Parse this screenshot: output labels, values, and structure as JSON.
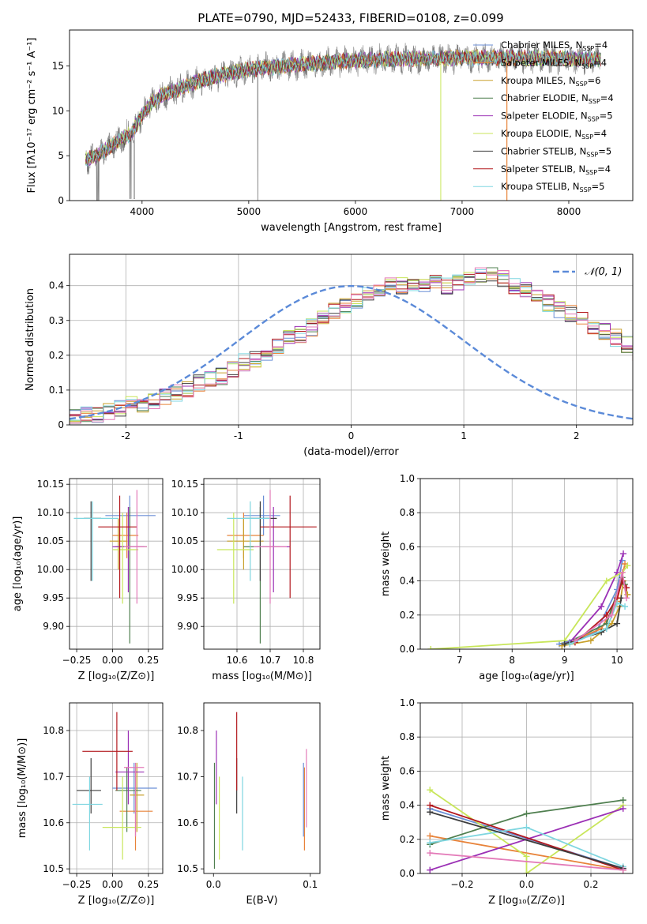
{
  "figure": {
    "title": "PLATE=0790, MJD=52433, FIBERID=0108, z=0.099"
  },
  "colors": {
    "Chabrier MILES": "#6b8fd6",
    "Salpeter MILES": "#e8833a",
    "Kroupa MILES": "#c8a02c",
    "Chabrier ELODIE": "#4f7f4f",
    "Salpeter ELODIE": "#9b30b5",
    "Kroupa ELODIE": "#c8e65a",
    "Chabrier STELIB": "#3d3d3d",
    "Salpeter STELIB": "#b3181e",
    "Kroupa STELIB": "#7fd6e0",
    "pink": "#e37ab8",
    "data": "#808080",
    "normal": "#5b8ad8"
  },
  "chart_data": [
    {
      "id": "spectrum",
      "type": "line",
      "xlabel": "wavelength [Angstrom, rest frame]",
      "ylabel": "Flux [fλ10⁻¹⁷ erg cm⁻² s⁻¹ A⁻¹]",
      "xlim": [
        3320,
        8600
      ],
      "ylim": [
        0,
        19
      ],
      "xticks": [
        4000,
        5000,
        6000,
        7000,
        8000
      ],
      "yticks": [
        0,
        5,
        10,
        15
      ],
      "grid": false,
      "legend": "right",
      "legend_entries": [
        {
          "name": "Chabrier MILES",
          "nssp": "4"
        },
        {
          "name": "Salpeter MILES",
          "nssp": "4"
        },
        {
          "name": "Kroupa MILES",
          "nssp": "6"
        },
        {
          "name": "Chabrier ELODIE",
          "nssp": "4"
        },
        {
          "name": "Salpeter ELODIE",
          "nssp": "5"
        },
        {
          "name": "Kroupa ELODIE",
          "nssp": "4"
        },
        {
          "name": "Chabrier STELIB",
          "nssp": "5"
        },
        {
          "name": "Salpeter STELIB",
          "nssp": "4"
        },
        {
          "name": "Kroupa STELIB",
          "nssp": "5"
        }
      ],
      "continuum": {
        "wavelength": [
          3470,
          3600,
          3700,
          3800,
          3900,
          4000,
          4100,
          4200,
          4300,
          4500,
          4700,
          5000,
          5500,
          6000,
          6500,
          7000,
          7500,
          8000,
          8300
        ],
        "flux": [
          4.5,
          5.2,
          6.0,
          6.8,
          7.5,
          9.5,
          11.0,
          11.8,
          12.2,
          13.2,
          13.9,
          14.6,
          15.2,
          15.6,
          15.8,
          15.9,
          15.9,
          15.8,
          15.7
        ]
      }
    },
    {
      "id": "residuals",
      "type": "histogram",
      "xlabel": "(data-model)/error",
      "ylabel": "Normed distribution",
      "xlim": [
        -2.5,
        2.5
      ],
      "ylim": [
        0,
        0.49
      ],
      "xticks": [
        -2,
        -1,
        0,
        1,
        2
      ],
      "yticks": [
        0.0,
        0.1,
        0.2,
        0.3,
        0.4
      ],
      "grid": true,
      "legend": "top-right",
      "legend_label": "𝒩(0, 1)",
      "bin_width": 0.1,
      "series_mean": [
        0.02,
        0.03,
        0.03,
        0.04,
        0.05,
        0.06,
        0.06,
        0.07,
        0.08,
        0.09,
        0.1,
        0.12,
        0.13,
        0.14,
        0.16,
        0.18,
        0.19,
        0.21,
        0.23,
        0.25,
        0.26,
        0.28,
        0.31,
        0.33,
        0.34,
        0.36,
        0.37,
        0.38,
        0.4,
        0.4,
        0.41,
        0.4,
        0.41,
        0.4,
        0.41,
        0.42,
        0.43,
        0.43,
        0.42,
        0.4,
        0.39,
        0.37,
        0.35,
        0.33,
        0.32,
        0.3,
        0.28,
        0.27,
        0.25,
        0.23,
        0.21,
        0.19,
        0.17,
        0.15,
        0.14,
        0.12,
        0.11,
        0.1,
        0.09,
        0.08,
        0.07,
        0.06,
        0.05,
        0.04,
        0.04,
        0.03,
        0.03,
        0.02
      ],
      "bin_start": -2.5
    },
    {
      "id": "age-vs-Z",
      "type": "scatter",
      "xlabel": "Z [log₁₀(Z/Z⊙)]",
      "ylabel": "age  [log₁₀(age/yr)]",
      "xlim": [
        -0.3,
        0.35
      ],
      "ylim": [
        9.86,
        10.16
      ],
      "xticks": [
        -0.25,
        0.0,
        0.25
      ],
      "xticklabels": [
        "−0.25",
        "0.00",
        "0.25"
      ],
      "yticks": [
        9.9,
        9.95,
        10.0,
        10.05,
        10.1,
        10.15
      ],
      "yticklabels": [
        "9.90",
        "9.95",
        "10.00",
        "10.05",
        "10.10",
        "10.15"
      ],
      "grid": true,
      "points": [
        {
          "s": "Chabrier MILES",
          "x": 0.12,
          "y": 10.095,
          "xlo": -0.05,
          "xhi": 0.3,
          "ylo": 10.06,
          "yhi": 10.13
        },
        {
          "s": "Salpeter MILES",
          "x": 0.1,
          "y": 10.06,
          "xlo": 0.0,
          "xhi": 0.18,
          "ylo": 10.02,
          "yhi": 10.1
        },
        {
          "s": "Kroupa MILES",
          "x": 0.04,
          "y": 10.05,
          "xlo": -0.02,
          "xhi": 0.1,
          "ylo": 10.0,
          "yhi": 10.09
        },
        {
          "s": "Chabrier ELODIE",
          "x": 0.12,
          "y": 10.04,
          "xlo": 0.02,
          "xhi": 0.24,
          "ylo": 9.87,
          "yhi": 10.11
        },
        {
          "s": "Salpeter ELODIE",
          "x": 0.11,
          "y": 10.04,
          "xlo": 0.0,
          "xhi": 0.22,
          "ylo": 9.96,
          "yhi": 10.11
        },
        {
          "s": "Kroupa ELODIE",
          "x": 0.07,
          "y": 10.035,
          "xlo": 0.0,
          "xhi": 0.18,
          "ylo": 9.94,
          "yhi": 10.1
        },
        {
          "s": "Chabrier STELIB",
          "x": -0.15,
          "y": 10.09,
          "xlo": -0.2,
          "xhi": -0.08,
          "ylo": 9.98,
          "yhi": 10.12
        },
        {
          "s": "Salpeter STELIB",
          "x": 0.05,
          "y": 10.075,
          "xlo": -0.1,
          "xhi": 0.17,
          "ylo": 9.95,
          "yhi": 10.13
        },
        {
          "s": "Kroupa STELIB",
          "x": -0.14,
          "y": 10.09,
          "xlo": -0.27,
          "xhi": 0.04,
          "ylo": 9.98,
          "yhi": 10.12
        },
        {
          "s": "pink",
          "x": 0.17,
          "y": 10.04,
          "xlo": 0.08,
          "xhi": 0.24,
          "ylo": 9.94,
          "yhi": 10.14
        }
      ]
    },
    {
      "id": "age-vs-mass",
      "type": "scatter",
      "xlabel": "mass [log₁₀(M/M⊙)]",
      "xlim": [
        10.5,
        10.85
      ],
      "ylim": [
        9.86,
        10.16
      ],
      "xticks": [
        10.6,
        10.7,
        10.8
      ],
      "xticklabels": [
        "10.6",
        "10.7",
        "10.8"
      ],
      "yticks": [
        9.9,
        9.95,
        10.0,
        10.05,
        10.1,
        10.15
      ],
      "yticklabels": [
        "9.90",
        "9.95",
        "10.00",
        "10.05",
        "10.10",
        "10.15"
      ],
      "grid": true,
      "points": [
        {
          "s": "Chabrier MILES",
          "x": 10.68,
          "y": 10.095,
          "xlo": 10.62,
          "xhi": 10.73,
          "ylo": 10.06,
          "yhi": 10.13
        },
        {
          "s": "Salpeter MILES",
          "x": 10.62,
          "y": 10.06,
          "xlo": 10.57,
          "xhi": 10.68,
          "ylo": 10.02,
          "yhi": 10.1
        },
        {
          "s": "Kroupa MILES",
          "x": 10.62,
          "y": 10.05,
          "xlo": 10.57,
          "xhi": 10.68,
          "ylo": 10.0,
          "yhi": 10.09
        },
        {
          "s": "Chabrier ELODIE",
          "x": 10.67,
          "y": 10.04,
          "xlo": 10.62,
          "xhi": 10.73,
          "ylo": 9.87,
          "yhi": 10.11
        },
        {
          "s": "Salpeter ELODIE",
          "x": 10.71,
          "y": 10.04,
          "xlo": 10.66,
          "xhi": 10.76,
          "ylo": 9.96,
          "yhi": 10.11
        },
        {
          "s": "Kroupa ELODIE",
          "x": 10.59,
          "y": 10.035,
          "xlo": 10.54,
          "xhi": 10.65,
          "ylo": 9.94,
          "yhi": 10.1
        },
        {
          "s": "Chabrier STELIB",
          "x": 10.67,
          "y": 10.09,
          "xlo": 10.62,
          "xhi": 10.72,
          "ylo": 9.98,
          "yhi": 10.12
        },
        {
          "s": "Salpeter STELIB",
          "x": 10.76,
          "y": 10.075,
          "xlo": 10.67,
          "xhi": 10.84,
          "ylo": 9.95,
          "yhi": 10.13
        },
        {
          "s": "Kroupa STELIB",
          "x": 10.64,
          "y": 10.09,
          "xlo": 10.57,
          "xhi": 10.7,
          "ylo": 9.98,
          "yhi": 10.12
        },
        {
          "s": "pink",
          "x": 10.7,
          "y": 10.04,
          "xlo": 10.65,
          "xhi": 10.75,
          "ylo": 9.94,
          "yhi": 10.14
        }
      ]
    },
    {
      "id": "weight-vs-age",
      "type": "line",
      "xlabel": "age  [log₁₀(age/yr)]",
      "ylabel": "mass weight",
      "xlim": [
        6.25,
        10.3
      ],
      "ylim": [
        0,
        1.0
      ],
      "xticks": [
        7,
        8,
        9,
        10
      ],
      "xticklabels": [
        "7",
        "8",
        "9",
        "10"
      ],
      "yticks": [
        0,
        0.2,
        0.4,
        0.6,
        0.8,
        1.0
      ],
      "yticklabels": [
        "0.0",
        "0.2",
        "0.4",
        "0.6",
        "0.8",
        "1.0"
      ],
      "grid": true,
      "series": [
        {
          "s": "Chabrier MILES",
          "x": [
            8.9,
            9.6,
            10.0,
            10.1
          ],
          "y": [
            0.03,
            0.1,
            0.35,
            0.52
          ]
        },
        {
          "s": "Salpeter MILES",
          "x": [
            9.0,
            9.7,
            10.0,
            10.15
          ],
          "y": [
            0.03,
            0.12,
            0.28,
            0.5
          ]
        },
        {
          "s": "Kroupa MILES",
          "x": [
            8.95,
            9.5,
            9.9,
            10.05,
            10.12,
            10.2
          ],
          "y": [
            0.02,
            0.05,
            0.15,
            0.25,
            0.4,
            0.32
          ]
        },
        {
          "s": "Chabrier ELODIE",
          "x": [
            9.0,
            9.8,
            10.1,
            10.15
          ],
          "y": [
            0.03,
            0.15,
            0.42,
            0.38
          ]
        },
        {
          "s": "Salpeter ELODIE",
          "x": [
            9.1,
            9.7,
            10.0,
            10.12
          ],
          "y": [
            0.04,
            0.25,
            0.45,
            0.56
          ]
        },
        {
          "s": "Kroupa ELODIE",
          "x": [
            6.45,
            9.0,
            9.8,
            10.1,
            10.2
          ],
          "y": [
            0.0,
            0.05,
            0.4,
            0.45,
            0.49
          ]
        },
        {
          "s": "Chabrier STELIB",
          "x": [
            9.0,
            9.7,
            10.0,
            10.08
          ],
          "y": [
            0.03,
            0.1,
            0.15,
            0.3
          ]
        },
        {
          "s": "Salpeter STELIB",
          "x": [
            9.2,
            9.8,
            10.0,
            10.1,
            10.18
          ],
          "y": [
            0.04,
            0.2,
            0.3,
            0.4,
            0.36
          ]
        },
        {
          "s": "Kroupa STELIB",
          "x": [
            9.1,
            9.8,
            10.0,
            10.15
          ],
          "y": [
            0.03,
            0.12,
            0.27,
            0.25
          ]
        },
        {
          "s": "pink",
          "x": [
            9.2,
            9.9,
            10.1,
            10.18
          ],
          "y": [
            0.05,
            0.2,
            0.45,
            0.3
          ]
        }
      ]
    },
    {
      "id": "mass-vs-Z",
      "type": "scatter",
      "xlabel": "Z [log₁₀(Z/Z⊙)]",
      "ylabel": "mass [log₁₀(M/M⊙)]",
      "xlim": [
        -0.3,
        0.35
      ],
      "ylim": [
        10.49,
        10.86
      ],
      "xticks": [
        -0.25,
        0.0,
        0.25
      ],
      "xticklabels": [
        "−0.25",
        "0.00",
        "0.25"
      ],
      "yticks": [
        10.5,
        10.6,
        10.7,
        10.8
      ],
      "yticklabels": [
        "10.5",
        "10.6",
        "10.7",
        "10.8"
      ],
      "grid": true,
      "points": [
        {
          "s": "Chabrier MILES",
          "x": 0.15,
          "y": 10.675,
          "xlo": 0.0,
          "xhi": 0.31,
          "ylo": 10.62,
          "yhi": 10.73
        },
        {
          "s": "Salpeter MILES",
          "x": 0.16,
          "y": 10.625,
          "xlo": 0.05,
          "xhi": 0.28,
          "ylo": 10.54,
          "yhi": 10.72
        },
        {
          "s": "Kroupa MILES",
          "x": 0.17,
          "y": 10.66,
          "xlo": 0.12,
          "xhi": 0.22,
          "ylo": 10.58,
          "yhi": 10.73
        },
        {
          "s": "Chabrier ELODIE",
          "x": 0.1,
          "y": 10.67,
          "xlo": 0.02,
          "xhi": 0.2,
          "ylo": 10.58,
          "yhi": 10.72
        },
        {
          "s": "Salpeter ELODIE",
          "x": 0.11,
          "y": 10.71,
          "xlo": 0.02,
          "xhi": 0.22,
          "ylo": 10.64,
          "yhi": 10.8
        },
        {
          "s": "Kroupa ELODIE",
          "x": 0.07,
          "y": 10.59,
          "xlo": -0.07,
          "xhi": 0.2,
          "ylo": 10.52,
          "yhi": 10.7
        },
        {
          "s": "Chabrier STELIB",
          "x": -0.15,
          "y": 10.67,
          "xlo": -0.25,
          "xhi": -0.08,
          "ylo": 10.62,
          "yhi": 10.74
        },
        {
          "s": "Salpeter STELIB",
          "x": 0.03,
          "y": 10.755,
          "xlo": -0.21,
          "xhi": 0.14,
          "ylo": 10.67,
          "yhi": 10.84
        },
        {
          "s": "Kroupa STELIB",
          "x": -0.16,
          "y": 10.64,
          "xlo": -0.28,
          "xhi": -0.07,
          "ylo": 10.54,
          "yhi": 10.7
        },
        {
          "s": "pink",
          "x": 0.16,
          "y": 10.72,
          "xlo": 0.08,
          "xhi": 0.22,
          "ylo": 10.57,
          "yhi": 10.73
        }
      ]
    },
    {
      "id": "mass-vs-EBV",
      "type": "scatter",
      "xlabel": "E(B-V)",
      "xlim": [
        -0.01,
        0.11
      ],
      "ylim": [
        10.49,
        10.86
      ],
      "xticks": [
        0.0,
        0.1
      ],
      "xticklabels": [
        "0.0",
        "0.1"
      ],
      "yticks": [
        10.5,
        10.6,
        10.7,
        10.8
      ],
      "yticklabels": [
        "10.5",
        "10.6",
        "10.7",
        "10.8"
      ],
      "grid": false,
      "points": [
        {
          "s": "Salpeter MILES",
          "x": 0.094,
          "y": 10.62,
          "ylo": 10.54,
          "yhi": 10.72
        },
        {
          "s": "Chabrier MILES",
          "x": 0.093,
          "y": 10.66,
          "ylo": 10.57,
          "yhi": 10.73
        },
        {
          "s": "Chabrier ELODIE",
          "x": 0.001,
          "y": 10.58,
          "ylo": 10.5,
          "yhi": 10.73
        },
        {
          "s": "Salpeter ELODIE",
          "x": 0.003,
          "y": 10.72,
          "ylo": 10.64,
          "yhi": 10.8
        },
        {
          "s": "Kroupa ELODIE",
          "x": 0.006,
          "y": 10.59,
          "ylo": 10.52,
          "yhi": 10.7
        },
        {
          "s": "Chabrier STELIB",
          "x": 0.024,
          "y": 10.67,
          "ylo": 10.62,
          "yhi": 10.74
        },
        {
          "s": "Salpeter STELIB",
          "x": 0.024,
          "y": 10.75,
          "ylo": 10.67,
          "yhi": 10.84
        },
        {
          "s": "Kroupa STELIB",
          "x": 0.03,
          "y": 10.62,
          "ylo": 10.54,
          "yhi": 10.7
        },
        {
          "s": "pink",
          "x": 0.096,
          "y": 10.67,
          "ylo": 10.59,
          "yhi": 10.76
        }
      ]
    },
    {
      "id": "weight-vs-Z",
      "type": "line",
      "xlabel": "Z [log₁₀(Z/Z⊙)]",
      "ylabel": "mass weight",
      "xlim": [
        -0.33,
        0.33
      ],
      "ylim": [
        0,
        1.0
      ],
      "xticks": [
        -0.2,
        0.0,
        0.2
      ],
      "xticklabels": [
        "−0.2",
        "0.0",
        "0.2"
      ],
      "yticks": [
        0,
        0.2,
        0.4,
        0.6,
        0.8,
        1.0
      ],
      "yticklabels": [
        "0.0",
        "0.2",
        "0.4",
        "0.6",
        "0.8",
        "1.0"
      ],
      "grid": true,
      "series": [
        {
          "s": "Chabrier MILES",
          "x": [
            -0.3,
            0.3
          ],
          "y": [
            0.38,
            0.03
          ]
        },
        {
          "s": "Salpeter MILES",
          "x": [
            -0.3,
            0.3
          ],
          "y": [
            0.22,
            0.02
          ]
        },
        {
          "s": "Kroupa ELODIE",
          "x": [
            -0.3,
            0.0,
            0.0,
            0.3
          ],
          "y": [
            0.49,
            0.1,
            0.0,
            0.4
          ]
        },
        {
          "s": "Chabrier ELODIE",
          "x": [
            -0.3,
            0.0,
            0.3
          ],
          "y": [
            0.17,
            0.35,
            0.43
          ]
        },
        {
          "s": "Salpeter ELODIE",
          "x": [
            -0.3,
            0.3
          ],
          "y": [
            0.02,
            0.38
          ]
        },
        {
          "s": "Salpeter STELIB",
          "x": [
            -0.3,
            0.3
          ],
          "y": [
            0.4,
            0.02
          ]
        },
        {
          "s": "Kroupa STELIB",
          "x": [
            -0.3,
            0.0,
            0.3
          ],
          "y": [
            0.18,
            0.27,
            0.04
          ]
        },
        {
          "s": "Chabrier STELIB",
          "x": [
            -0.3,
            0.3
          ],
          "y": [
            0.36,
            0.03
          ]
        },
        {
          "s": "pink",
          "x": [
            -0.3,
            0.3
          ],
          "y": [
            0.12,
            0.02
          ]
        }
      ]
    }
  ]
}
